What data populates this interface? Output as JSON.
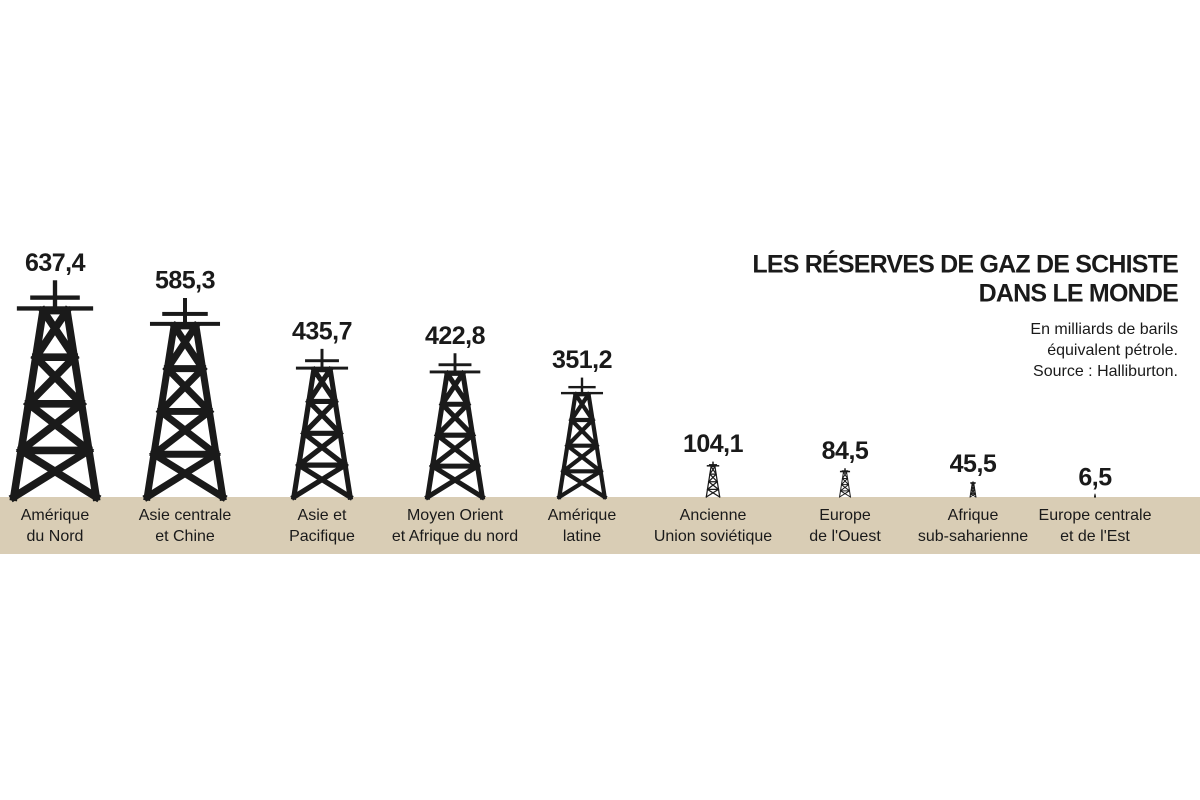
{
  "chart_data": {
    "type": "pictogram",
    "title": [
      "LES RÉSERVES DE GAZ DE SCHISTE",
      "DANS LE MONDE"
    ],
    "subtitle": [
      "En milliards de barils",
      "équivalent pétrole."
    ],
    "source": "Source : Halliburton.",
    "categories": [
      [
        "Amérique",
        "du Nord"
      ],
      [
        "Asie centrale",
        "et Chine"
      ],
      [
        "Asie et",
        "Pacifique"
      ],
      [
        "Moyen Orient",
        "et Afrique du nord"
      ],
      [
        "Amérique",
        "latine"
      ],
      [
        "Ancienne",
        "Union soviétique"
      ],
      [
        "Europe",
        "de l'Ouest"
      ],
      [
        "Afrique",
        "sub-saharienne"
      ],
      [
        "Europe centrale",
        "et de l'Est"
      ]
    ],
    "values": [
      637.4,
      585.3,
      435.7,
      422.8,
      351.2,
      104.1,
      84.5,
      45.5,
      6.5
    ],
    "value_labels": [
      "637,4",
      "585,3",
      "435,7",
      "422,8",
      "351,2",
      "104,1",
      "84,5",
      "45,5",
      "6,5"
    ],
    "color": "#1a1a1a",
    "ground_color": "#d9cdb5"
  }
}
